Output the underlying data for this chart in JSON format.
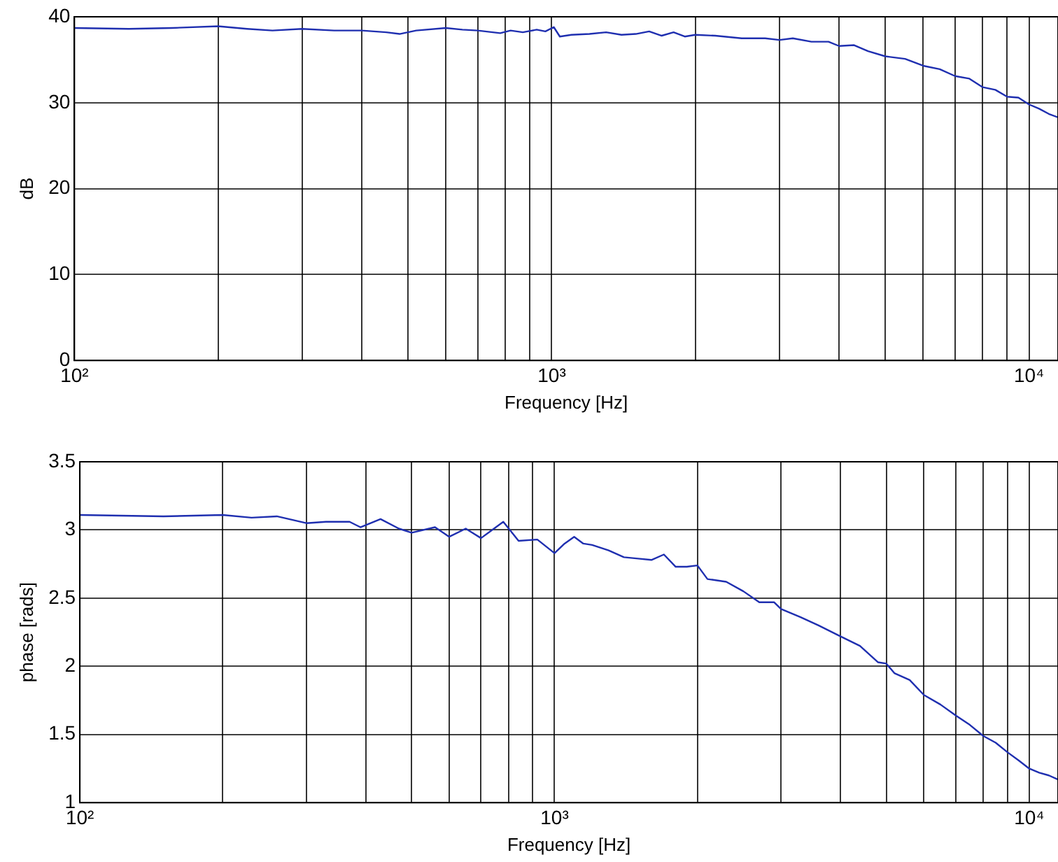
{
  "chart_data": [
    {
      "type": "line",
      "xlabel": "Frequency [Hz]",
      "ylabel": "dB",
      "log": "x",
      "grid": true,
      "line_style": "solid",
      "marker": "none",
      "xlim": [
        100,
        11500
      ],
      "ylim": [
        0,
        40
      ],
      "yticks": [
        0,
        10,
        20,
        30,
        40
      ],
      "xticks": [
        {
          "value": 100,
          "label": "10²"
        },
        {
          "value": 200,
          "label": null
        },
        {
          "value": 300,
          "label": null
        },
        {
          "value": 400,
          "label": null
        },
        {
          "value": 500,
          "label": null
        },
        {
          "value": 600,
          "label": null
        },
        {
          "value": 700,
          "label": null
        },
        {
          "value": 800,
          "label": null
        },
        {
          "value": 900,
          "label": null
        },
        {
          "value": 1000,
          "label": "10³"
        },
        {
          "value": 2000,
          "label": null
        },
        {
          "value": 3000,
          "label": null
        },
        {
          "value": 4000,
          "label": null
        },
        {
          "value": 5000,
          "label": null
        },
        {
          "value": 6000,
          "label": null
        },
        {
          "value": 7000,
          "label": null
        },
        {
          "value": 8000,
          "label": null
        },
        {
          "value": 9000,
          "label": null
        },
        {
          "value": 10000,
          "label": "10⁴"
        }
      ],
      "x": [
        100,
        130,
        160,
        200,
        230,
        260,
        300,
        350,
        400,
        450,
        480,
        520,
        600,
        650,
        700,
        780,
        820,
        870,
        930,
        970,
        1010,
        1040,
        1100,
        1200,
        1300,
        1400,
        1500,
        1600,
        1700,
        1800,
        1900,
        2000,
        2200,
        2500,
        2800,
        3000,
        3200,
        3500,
        3800,
        4000,
        4300,
        4600,
        5000,
        5500,
        6000,
        6500,
        7000,
        7500,
        8000,
        8500,
        9000,
        9500,
        10000,
        10500,
        11000,
        11500
      ],
      "series": [
        {
          "color": "#1f2fb0",
          "values": [
            38.7,
            38.6,
            38.7,
            38.9,
            38.6,
            38.4,
            38.6,
            38.4,
            38.4,
            38.2,
            38.0,
            38.4,
            38.7,
            38.5,
            38.4,
            38.1,
            38.4,
            38.2,
            38.5,
            38.3,
            38.8,
            37.7,
            37.9,
            38.0,
            38.2,
            37.9,
            38.0,
            38.3,
            37.8,
            38.2,
            37.7,
            37.9,
            37.8,
            37.5,
            37.5,
            37.3,
            37.5,
            37.1,
            37.1,
            36.6,
            36.7,
            36.0,
            35.4,
            35.1,
            34.3,
            33.9,
            33.1,
            32.8,
            31.8,
            31.5,
            30.7,
            30.6,
            29.8,
            29.3,
            28.7,
            28.3
          ]
        }
      ]
    },
    {
      "type": "line",
      "xlabel": "Frequency [Hz]",
      "ylabel": "phase [rads]",
      "log": "x",
      "grid": true,
      "line_style": "solid",
      "marker": "none",
      "xlim": [
        100,
        11500
      ],
      "ylim": [
        1,
        3.5
      ],
      "yticks": [
        1,
        1.5,
        2,
        2.5,
        3,
        3.5
      ],
      "xticks": [
        {
          "value": 100,
          "label": "10²"
        },
        {
          "value": 200,
          "label": null
        },
        {
          "value": 300,
          "label": null
        },
        {
          "value": 400,
          "label": null
        },
        {
          "value": 500,
          "label": null
        },
        {
          "value": 600,
          "label": null
        },
        {
          "value": 700,
          "label": null
        },
        {
          "value": 800,
          "label": null
        },
        {
          "value": 900,
          "label": null
        },
        {
          "value": 1000,
          "label": "10³"
        },
        {
          "value": 2000,
          "label": null
        },
        {
          "value": 3000,
          "label": null
        },
        {
          "value": 4000,
          "label": null
        },
        {
          "value": 5000,
          "label": null
        },
        {
          "value": 6000,
          "label": null
        },
        {
          "value": 7000,
          "label": null
        },
        {
          "value": 8000,
          "label": null
        },
        {
          "value": 9000,
          "label": null
        },
        {
          "value": 10000,
          "label": "10⁴"
        }
      ],
      "x": [
        100,
        150,
        200,
        230,
        260,
        300,
        330,
        370,
        390,
        430,
        470,
        500,
        560,
        600,
        650,
        700,
        780,
        840,
        920,
        1000,
        1050,
        1100,
        1150,
        1200,
        1300,
        1400,
        1500,
        1600,
        1700,
        1800,
        1900,
        2000,
        2100,
        2300,
        2500,
        2700,
        2900,
        3000,
        3300,
        3600,
        4000,
        4400,
        4800,
        5000,
        5200,
        5600,
        6000,
        6500,
        7000,
        7500,
        8000,
        8500,
        9000,
        9500,
        10000,
        10500,
        11000,
        11500
      ],
      "series": [
        {
          "color": "#1f2fb0",
          "values": [
            3.11,
            3.1,
            3.11,
            3.09,
            3.1,
            3.05,
            3.06,
            3.06,
            3.02,
            3.08,
            3.01,
            2.98,
            3.02,
            2.95,
            3.01,
            2.94,
            3.06,
            2.92,
            2.93,
            2.83,
            2.9,
            2.95,
            2.9,
            2.89,
            2.85,
            2.8,
            2.79,
            2.78,
            2.82,
            2.73,
            2.73,
            2.74,
            2.64,
            2.62,
            2.55,
            2.47,
            2.47,
            2.42,
            2.36,
            2.3,
            2.22,
            2.15,
            2.03,
            2.02,
            1.95,
            1.9,
            1.79,
            1.72,
            1.64,
            1.57,
            1.49,
            1.44,
            1.37,
            1.31,
            1.25,
            1.22,
            1.2,
            1.17
          ]
        }
      ]
    }
  ]
}
